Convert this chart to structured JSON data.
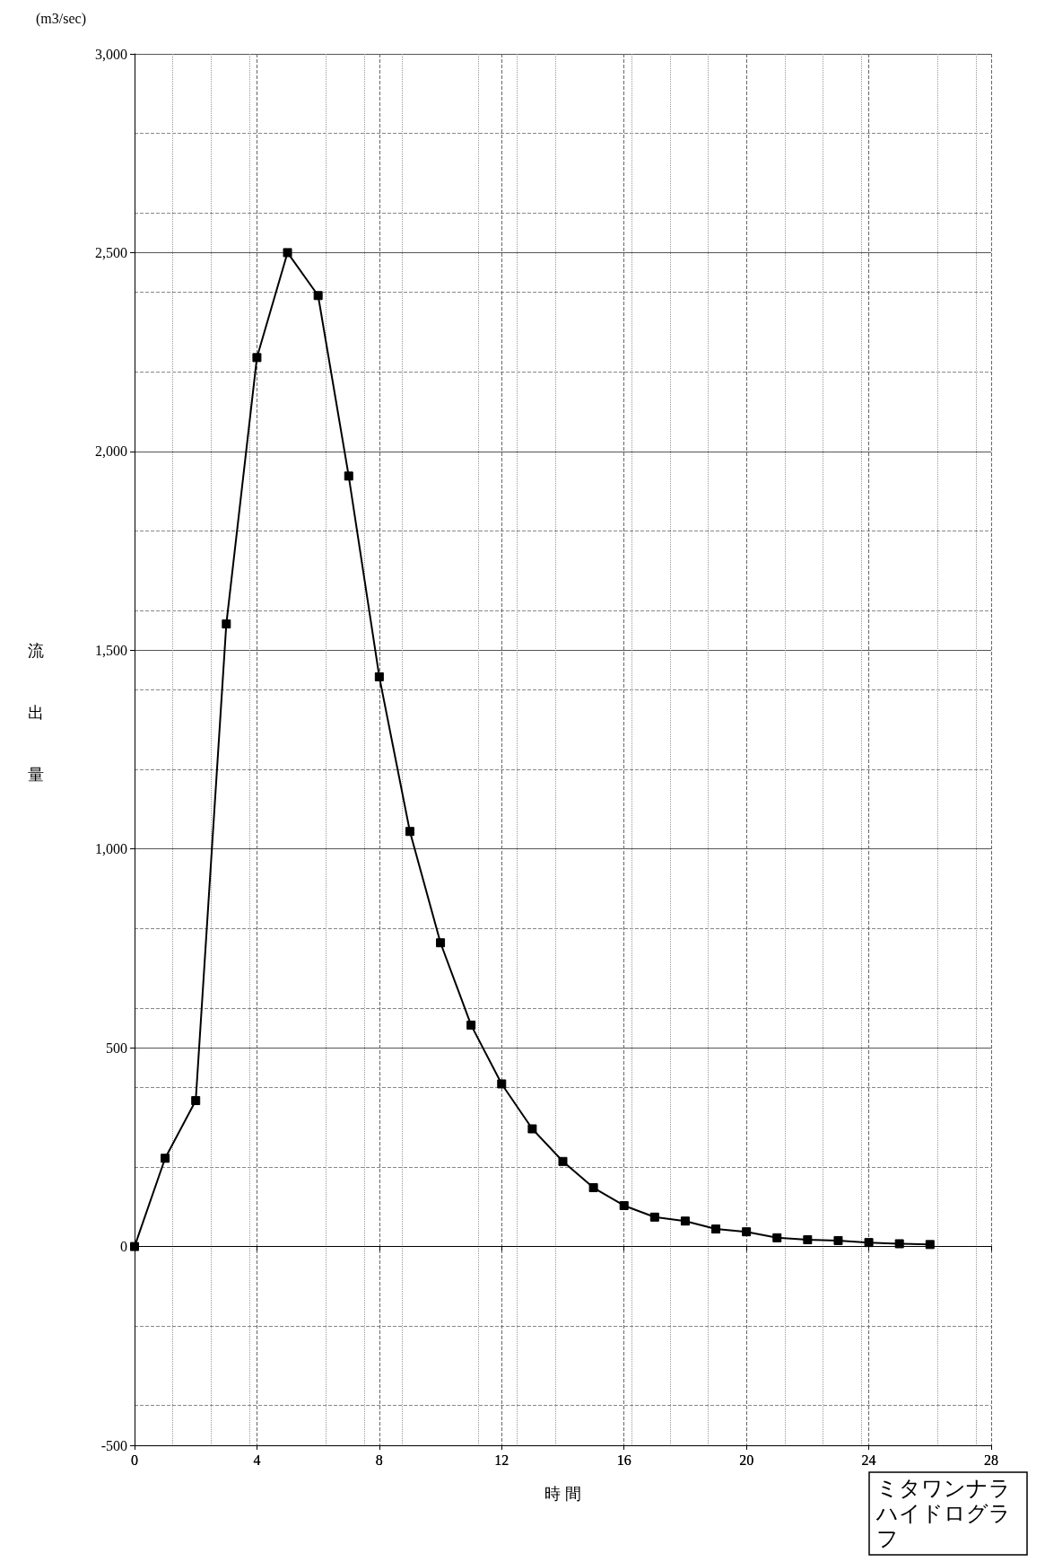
{
  "chart_data": {
    "type": "line",
    "title": "ミタワンナラハイドログラフ",
    "xlabel": "時 間",
    "ylabel": "流出量",
    "annotations": [
      "(m3/sec)"
    ],
    "x": [
      0,
      1,
      2,
      3,
      4,
      5,
      6,
      7,
      8,
      9,
      10,
      11,
      12,
      13,
      14,
      15,
      16,
      17,
      18,
      19,
      20,
      21,
      22,
      23,
      24,
      25,
      26
    ],
    "series": [
      {
        "color": "#000000",
        "values": [
          0,
          222,
          367,
          1566,
          2236,
          2500,
          2392,
          1938,
          1433,
          1044,
          764,
          557,
          409,
          296,
          214,
          148,
          103,
          74,
          64,
          44,
          37,
          22,
          17,
          15,
          10,
          7,
          5
        ]
      }
    ],
    "xlim": [
      0,
      28
    ],
    "xticks": [
      0,
      4,
      8,
      12,
      16,
      20,
      24,
      28
    ],
    "ylim": [
      -500,
      3000
    ],
    "yticks": [
      {
        "value": -500,
        "label": "-500"
      },
      0,
      500,
      {
        "value": 1000,
        "label": "1,000"
      },
      {
        "value": 1500,
        "label": "1,500"
      },
      {
        "value": 2000,
        "label": "2,000"
      },
      {
        "value": 2500,
        "label": "2,500"
      },
      {
        "value": 3000,
        "label": "3,000"
      }
    ],
    "grid": true,
    "marker": "square",
    "line_style": "solid"
  }
}
